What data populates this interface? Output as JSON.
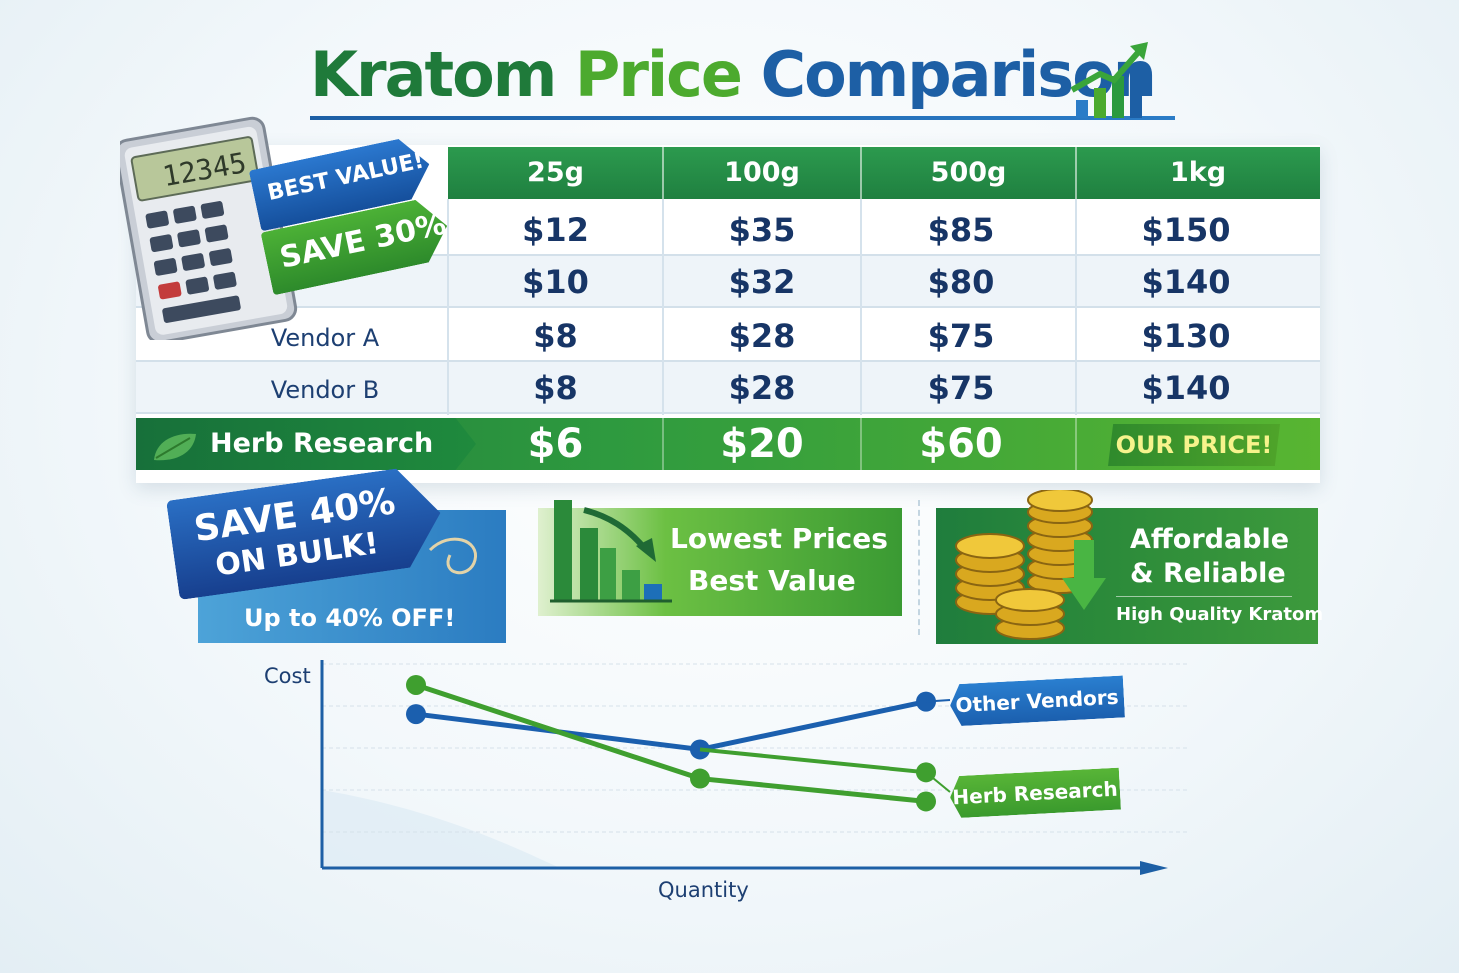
{
  "title": {
    "word1": "Kratom",
    "word2": "Price",
    "word3": "Comparison"
  },
  "calculator": {
    "display": "12345"
  },
  "tags": {
    "best_value": "BEST VALUE!",
    "save30": "SAVE 30%"
  },
  "table": {
    "columns": [
      "25g",
      "100g",
      "500g",
      "1kg"
    ],
    "rows": [
      {
        "label": "",
        "values": [
          "$12",
          "$35",
          "$85",
          "$150"
        ]
      },
      {
        "label": "",
        "values": [
          "$10",
          "$32",
          "$80",
          "$140"
        ]
      },
      {
        "label": "Vendor A",
        "values": [
          "$8",
          "$28",
          "$75",
          "$130"
        ]
      },
      {
        "label": "Vendor B",
        "values": [
          "$8",
          "$28",
          "$75",
          "$140"
        ]
      }
    ],
    "highlight": {
      "label": "Herb Research",
      "values": [
        "$6",
        "$20",
        "$60"
      ],
      "badge": "OUR PRICE!"
    }
  },
  "promo": {
    "bulk": {
      "line1": "SAVE 40%",
      "line2": "ON BULK!",
      "sub": "Up to 40% OFF!"
    },
    "lowest": {
      "line1": "Lowest Prices",
      "line2": "Best Value"
    },
    "affordable": {
      "line1": "Affordable",
      "line2": "& Reliable",
      "line3": "High Quality Kratom"
    }
  },
  "colors": {
    "green_dark": "#1f7a3a",
    "green_light": "#4caa2e",
    "blue": "#1d5fa5",
    "other_line": "#1b5fae",
    "herb_line": "#3f9f2f"
  },
  "chart_data": {
    "type": "line",
    "ylabel": "Cost",
    "xlabel": "Quantity",
    "x": [
      1,
      2,
      3
    ],
    "ylim": [
      0,
      10
    ],
    "grid": true,
    "series": [
      {
        "name": "Other Vendors",
        "values": [
          7.4,
          5.7,
          8.0
        ]
      },
      {
        "name": "Herb Research",
        "values": [
          8.8,
          4.3,
          3.2
        ],
        "extra_point": 4.6
      }
    ]
  }
}
